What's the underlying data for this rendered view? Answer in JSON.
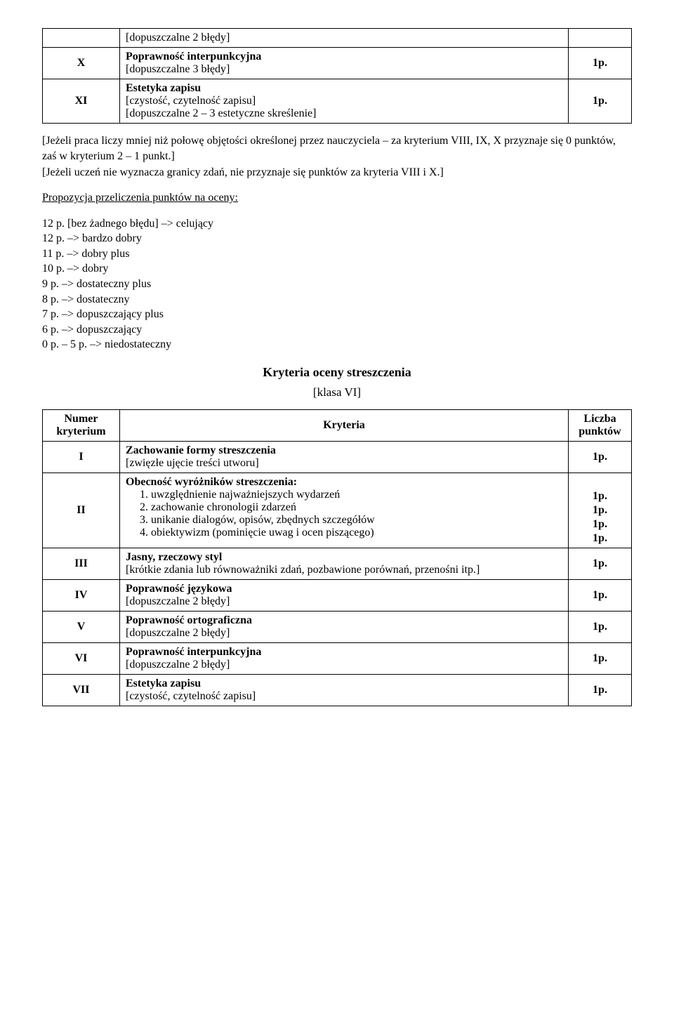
{
  "table1": {
    "rows": [
      {
        "num": "",
        "content_lines": [
          "[dopuszczalne 2 błędy]"
        ],
        "bold_first": false,
        "points": ""
      },
      {
        "num": "X",
        "content_lines": [
          "Poprawność interpunkcyjna",
          "[dopuszczalne 3 błędy]"
        ],
        "bold_first": true,
        "points": "1p."
      },
      {
        "num": "XI",
        "content_lines": [
          "Estetyka zapisu",
          "[czystość, czytelność zapisu]",
          "[dopuszczalne 2 – 3 estetyczne skreślenie]"
        ],
        "bold_first": true,
        "points": "1p."
      }
    ]
  },
  "para1": "[Jeżeli praca liczy mniej niż połowę objętości określonej przez nauczyciela – za kryterium VIII, IX, X przyznaje się 0 punktów, zaś w kryterium 2 – 1 punkt.]",
  "para2": "[Jeżeli uczeń nie wyznacza granicy zdań, nie przyznaje się punktów za kryteria VIII i X.]",
  "scale_heading": "Propozycja przeliczenia punktów na oceny:",
  "scale": [
    "12 p. [bez żadnego błędu] –> celujący",
    "12 p. –> bardzo dobry",
    "11 p. –> dobry plus",
    "10 p. –> dobry",
    "9 p. –> dostateczny plus",
    "8 p. –> dostateczny",
    "7 p. –> dopuszczający plus",
    "6 p. –> dopuszczający",
    "0 p. – 5 p. –> niedostateczny"
  ],
  "section_title": "Kryteria oceny streszczenia",
  "section_sub": "[klasa VI]",
  "table2": {
    "head": {
      "c1": "Numer kryterium",
      "c2": "Kryteria",
      "c3": "Liczba punktów"
    },
    "rows": [
      {
        "num": "I",
        "title": "Zachowanie formy streszczenia",
        "lines": [
          "[zwięzłe ujęcie treści utworu]"
        ],
        "points": [
          "1p."
        ]
      },
      {
        "num": "II",
        "title": "Obecność wyróżników streszczenia:",
        "ol": [
          "uwzględnienie najważniejszych wydarzeń",
          "zachowanie chronologii zdarzeń",
          "unikanie dialogów, opisów, zbędnych szczegółów",
          "obiektywizm (pominięcie uwag i ocen piszącego)"
        ],
        "points": [
          "1p.",
          "1p.",
          "1p.",
          "1p."
        ]
      },
      {
        "num": "III",
        "title": "Jasny, rzeczowy styl",
        "lines": [
          "[krótkie zdania lub równoważniki zdań, pozbawione porównań, przenośni itp.]"
        ],
        "points": [
          "1p."
        ]
      },
      {
        "num": "IV",
        "title": "Poprawność językowa",
        "lines": [
          "[dopuszczalne 2 błędy]"
        ],
        "points": [
          "1p."
        ]
      },
      {
        "num": "V",
        "title": "Poprawność ortograficzna",
        "lines": [
          "[dopuszczalne 2 błędy]"
        ],
        "points": [
          "1p."
        ]
      },
      {
        "num": "VI",
        "title": "Poprawność interpunkcyjna",
        "lines": [
          "[dopuszczalne 2 błędy]"
        ],
        "points": [
          "1p."
        ]
      },
      {
        "num": "VII",
        "title": "Estetyka zapisu",
        "lines": [
          "[czystość, czytelność zapisu]"
        ],
        "points": [
          "1p."
        ]
      }
    ]
  }
}
